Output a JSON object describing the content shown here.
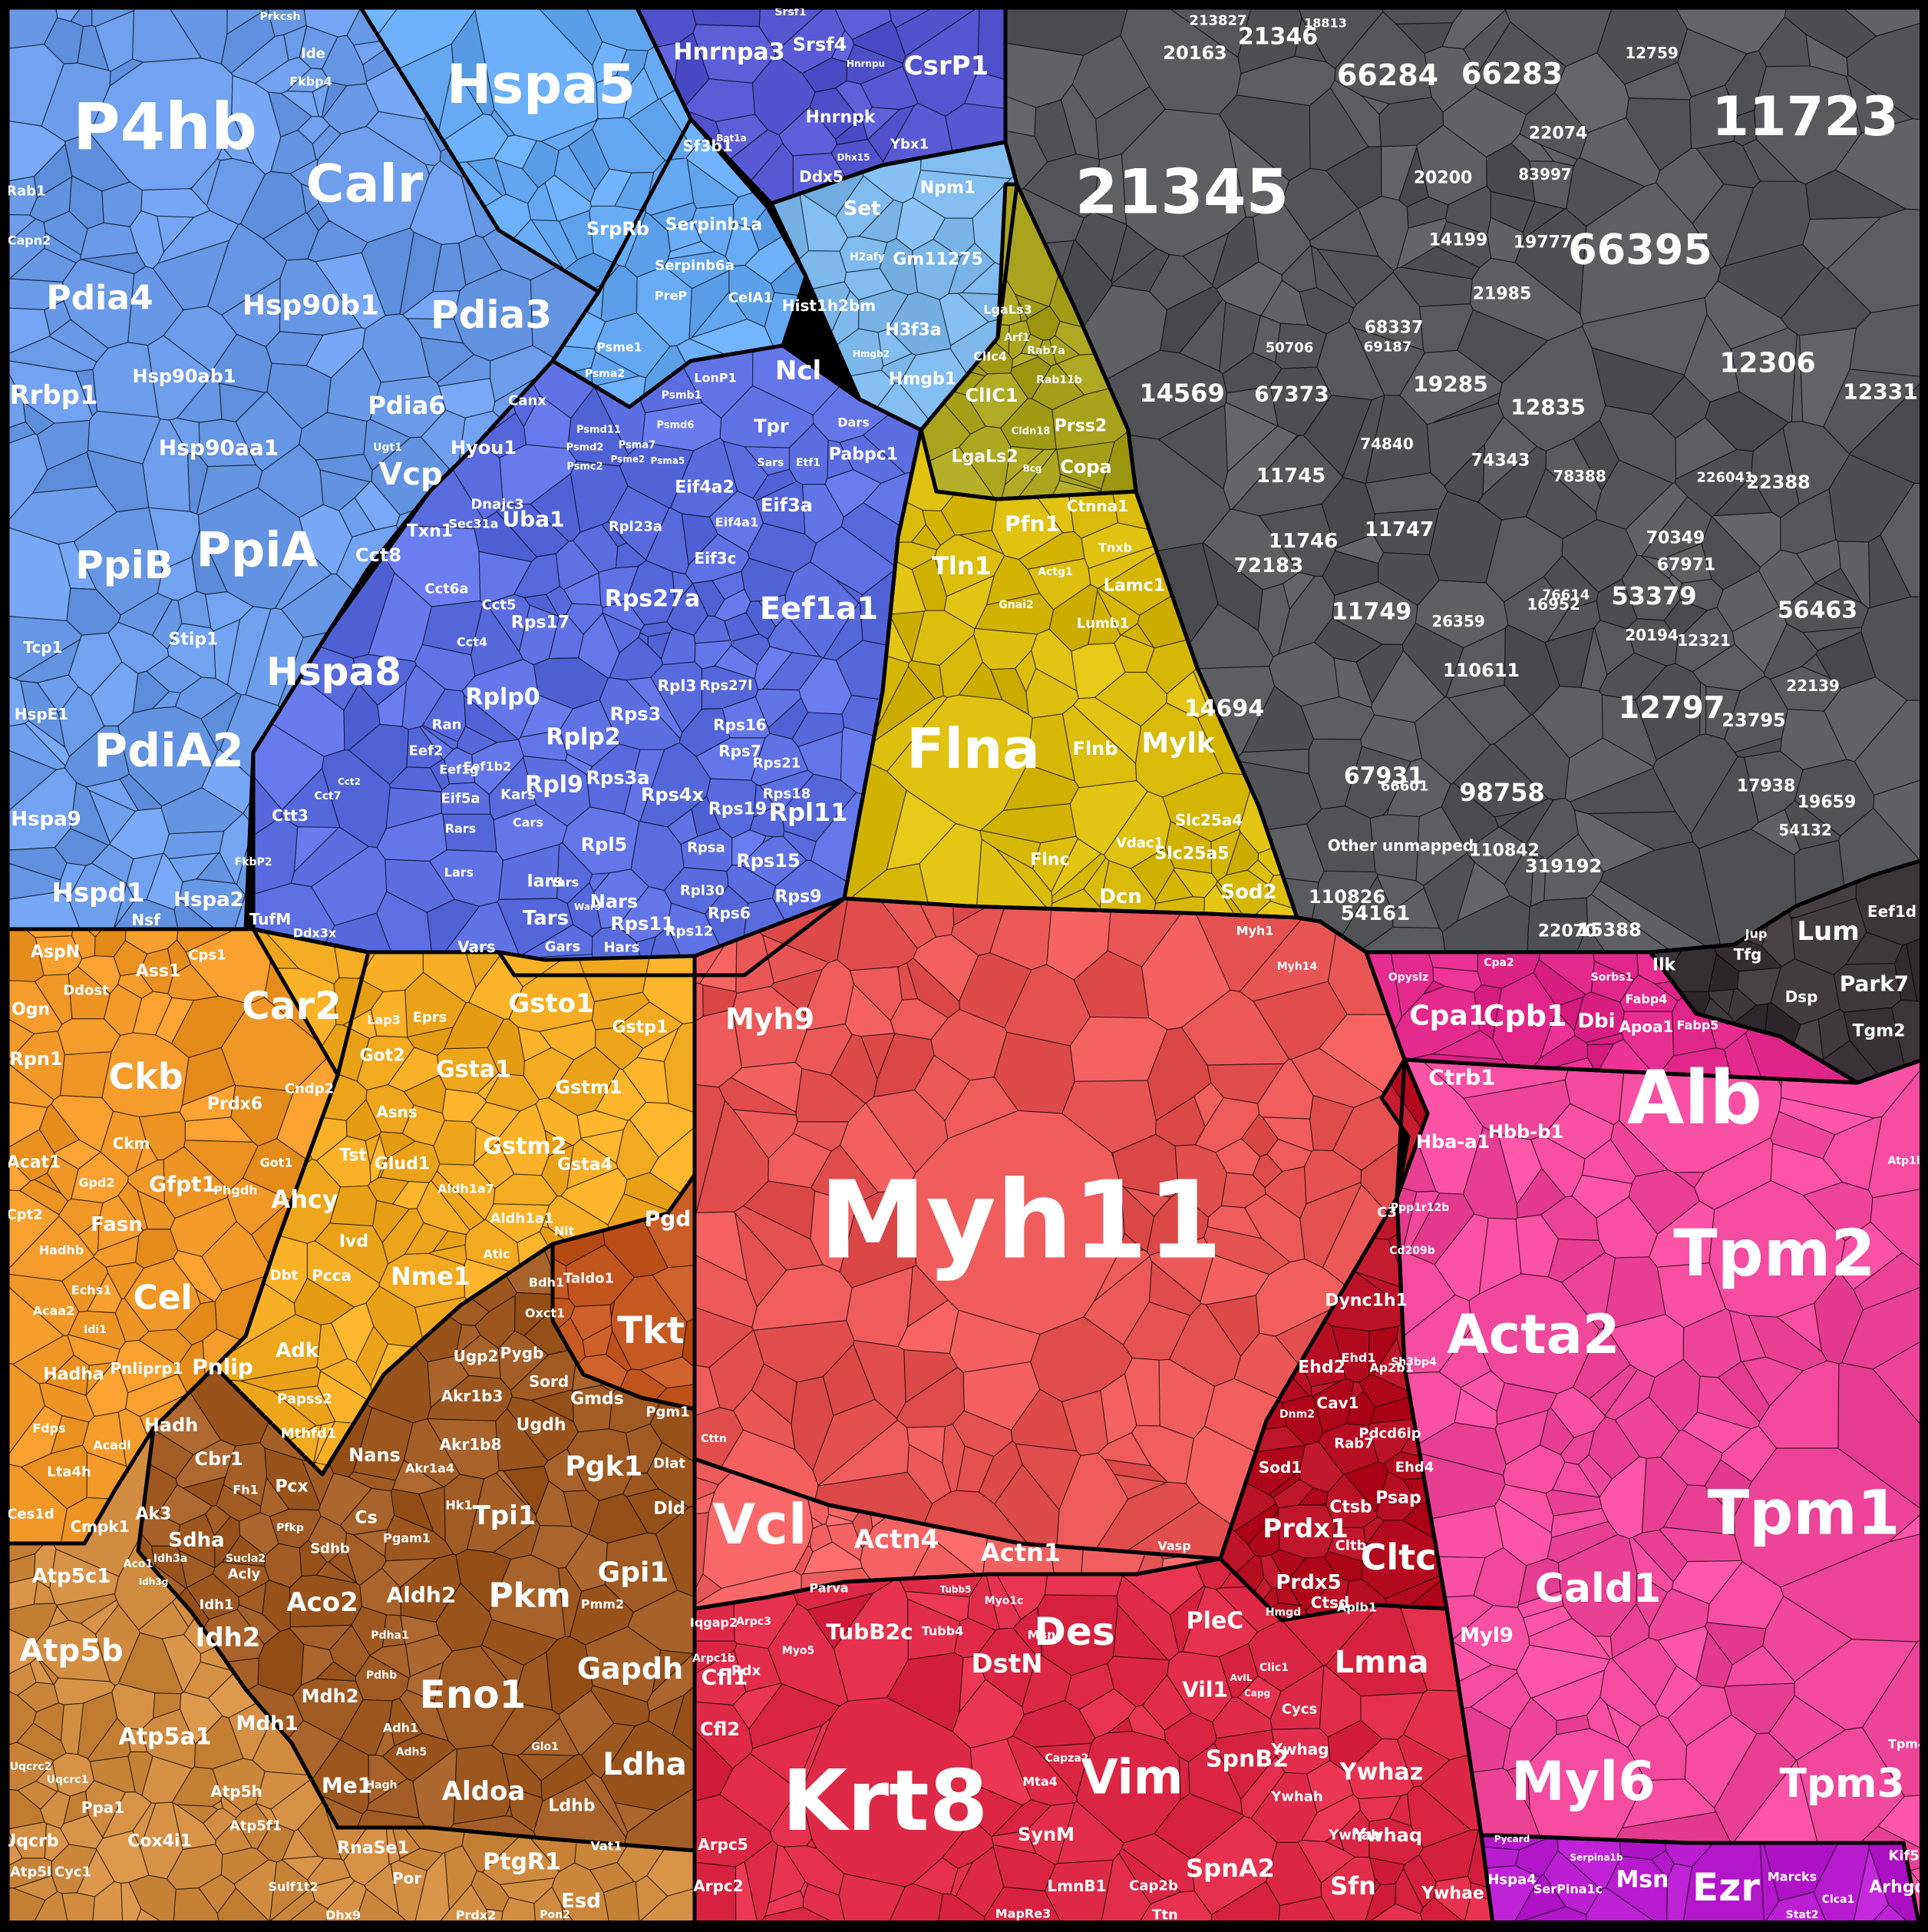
{
  "chart_data": {
    "type": "voronoi-treemap",
    "colors": {
      "er_blue": "#6a9ae8",
      "sky_blue": "#64a8f2",
      "indigo": "#5656d2",
      "light_blue": "#7cb6ea",
      "ribosome_blue": "#5b6fe3",
      "olive": "#a9a21d",
      "gold": "#d8ba0b",
      "unmapped_gray": "#55575b",
      "dark_slate": "#3b3438",
      "orange": "#f09828",
      "amber": "#f2aa20",
      "rust": "#c2541e",
      "brown": "#a05a22",
      "tan": "#d08a40",
      "coral": "#e85555",
      "salmon": "#f06060",
      "crimson": "#de2a46",
      "dark_red": "#b80e22",
      "magenta": "#e0268a",
      "hot_pink": "#f0489a",
      "purple": "#b81ad0"
    },
    "regions": [
      {
        "name": "er-chaperone",
        "color": "er_blue",
        "labels": [
          "P4hb",
          "Calr",
          "Pdia4",
          "Hsp90b1",
          "Pdia3",
          "Rrbp1",
          "Hsp90ab1",
          "Pdia6",
          "Hsp90aa1",
          "Vcp",
          "Hyou1",
          "Canx",
          "Uba1",
          "PpiB",
          "PpiA",
          "Cct8",
          "Txn1",
          "Cct6a",
          "Hspa8",
          "PdiA2",
          "Stip1",
          "Cct5",
          "Cct4",
          "Tcp1",
          "HspE1",
          "Hspa9",
          "Hspd1",
          "Rab1",
          "Capn2",
          "Ugt1",
          "Sec31a",
          "Fkbp4",
          "Ide",
          "Prkcsh",
          "Dnajc3",
          "Cct7",
          "Ctt3",
          "Cct2",
          "Hspa2",
          "Nsf",
          "TufM",
          "Ddx3x",
          "FkbP2"
        ]
      },
      {
        "name": "secretory",
        "color": "sky_blue",
        "labels": [
          "Hspa5",
          "SrpRb",
          "Serpinb1a",
          "Serpinb6a",
          "CelA1",
          "LonP1",
          "PreP",
          "Psme1",
          "Psma2",
          "Psmb1",
          "Psmd11",
          "Psmc2",
          "Psma7",
          "Psmd6",
          "Psmd2",
          "Psme2",
          "Psma5"
        ]
      },
      {
        "name": "splicing",
        "color": "indigo",
        "labels": [
          "Hnrnpa3",
          "Srsf4",
          "CsrP1",
          "Sf3b1",
          "Hnrnpk",
          "Ddx5",
          "Ybx1",
          "Srsf1",
          "Dhx15",
          "Hnrnpu",
          "Bat1a"
        ]
      },
      {
        "name": "histone",
        "color": "light_blue",
        "labels": [
          "Npm1",
          "Set",
          "Gm11275",
          "Hist1h2bm",
          "H3f3a",
          "Hmgb1",
          "H2afy",
          "Hmgb2"
        ]
      },
      {
        "name": "translation",
        "color": "ribosome_blue",
        "labels": [
          "Ncl",
          "Tpr",
          "Pabpc1",
          "Eif4a2",
          "Eif3a",
          "Eif4a1",
          "Eif3c",
          "Eef1a1",
          "Rpl23a",
          "Rps27a",
          "Rplp0",
          "Rplp2",
          "Rps3",
          "Rpl3",
          "Rps27l",
          "Rps16",
          "Rps17",
          "Rpl9",
          "Rps3a",
          "Rps4x",
          "Rps7",
          "Rps21",
          "Rps18",
          "Rps19",
          "Rpl11",
          "Rpl5",
          "Rps15",
          "Rpsa",
          "Rpl30",
          "Rps6",
          "Rps11",
          "Rps12",
          "Rps9",
          "Ran",
          "Eef2",
          "Eef1b2",
          "Eef1g",
          "Eif5a",
          "Kars",
          "Rars",
          "Cars",
          "Lars",
          "Iars",
          "Yars",
          "Tars",
          "Nars",
          "Vars",
          "Gars",
          "Hars",
          "Wars",
          "Dars",
          "Sars",
          "Etf1",
          "Ppp2r1a",
          "Farsb",
          "Eif3h",
          "Eif3b",
          "Eif3e"
        ]
      },
      {
        "name": "actin-binding",
        "color": "olive",
        "labels": [
          "ClIC1",
          "LgaLs2",
          "Prss2",
          "Copa",
          "ClIc4",
          "LgaLs3",
          "Arf1",
          "Rab7a",
          "Rab11b",
          "Cldn18",
          "Bcg"
        ]
      },
      {
        "name": "cytoskeleton-filamin",
        "color": "gold",
        "labels": [
          "Pfn1",
          "Tln1",
          "Ctnna1",
          "Lamc1",
          "Lumb1",
          "Flna",
          "Flnb",
          "Mylk",
          "Slc25a4",
          "Slc25a5",
          "Vdac1",
          "Flnc",
          "Dcn",
          "Sod2",
          "Gnai2",
          "Tnxb",
          "Actg1"
        ]
      },
      {
        "name": "other-unmapped",
        "color": "unmapped_gray",
        "labels": [
          "21345",
          "11723",
          "66284",
          "66283",
          "21346",
          "66395",
          "12306",
          "12331",
          "14569",
          "67373",
          "19285",
          "12835",
          "11745",
          "11746",
          "11747",
          "72183",
          "11749",
          "53379",
          "56463",
          "12797",
          "14694",
          "110611",
          "23795",
          "67931",
          "98758",
          "319192",
          "110842",
          "110826",
          "54161",
          "22070",
          "15388",
          "20163",
          "213827",
          "18813",
          "12759",
          "20200",
          "83997",
          "22074",
          "14199",
          "19777",
          "21985",
          "68337",
          "69187",
          "50706",
          "74840",
          "74343",
          "78388",
          "70349",
          "22388",
          "226041",
          "67971",
          "12321",
          "16952",
          "20194",
          "76614",
          "26359",
          "22139",
          "17938",
          "19659",
          "54132",
          "66601",
          "Other unmapped"
        ]
      },
      {
        "name": "ecm",
        "color": "dark_slate",
        "labels": [
          "Lum",
          "Park7",
          "Eef1d",
          "Tgm2",
          "Tfg",
          "Dsp",
          "Jup"
        ]
      },
      {
        "name": "metabolism-kinase",
        "color": "orange",
        "labels": [
          "AspN",
          "Ogn",
          "Rpn1",
          "Ddost",
          "Ass1",
          "Cps1",
          "Ckb",
          "Ckm",
          "Gfpt1",
          "Acat1",
          "Cpt2",
          "Fasn",
          "Cel",
          "Echs1",
          "Hadha",
          "Pnliprp1",
          "Pnlip",
          "Hadh",
          "Cbr1",
          "Lta4h",
          "Fdps",
          "Acadl",
          "Ces1d",
          "Cmpk1",
          "Ak3",
          "Gpd2",
          "Hadhb",
          "Acaa2",
          "Idi1"
        ]
      },
      {
        "name": "glutathione",
        "color": "amber",
        "labels": [
          "Car2",
          "Gsto1",
          "Gstp1",
          "Gsta1",
          "Gstm1",
          "Gstm2",
          "Gsta4",
          "Got2",
          "Asns",
          "Glud1",
          "Tst",
          "Prdx6",
          "Cndp2",
          "Ahcy",
          "Ivd",
          "Dbt",
          "Pcca",
          "Nme1",
          "Adk",
          "Papss2",
          "Aldh1a1",
          "Aldh1a7",
          "Got1",
          "Phgdh",
          "Eprs",
          "Lap3",
          "Nit",
          "Atic"
        ]
      },
      {
        "name": "pentose-phosphate",
        "color": "rust",
        "labels": [
          "Pgd",
          "Tkt",
          "Taldo1",
          "Pgm1",
          "Dlat",
          "Dld",
          "Bdh1",
          "Oxct1"
        ]
      },
      {
        "name": "glycolysis",
        "color": "brown",
        "labels": [
          "Ugp2",
          "Pygb",
          "Sord",
          "Akr1b3",
          "Ugdh",
          "Akr1b8",
          "Gmds",
          "Pgk1",
          "Nans",
          "Pcx",
          "Cs",
          "Tpi1",
          "Gpi1",
          "Sdha",
          "Aco2",
          "Idh2",
          "Mdh1",
          "Mdh2",
          "Me1",
          "Aldh2",
          "Pkm",
          "Gapdh",
          "Eno1",
          "Aldoa",
          "Ldha",
          "Ldhb",
          "Pdha1",
          "Pdhb",
          "Adh1",
          "Adh5",
          "Hagh",
          "Mthfd1",
          "Acly",
          "Idh1",
          "Sucla2",
          "Sdhb",
          "Fh1",
          "Hk1",
          "Pgam1",
          "Pmm2",
          "Glo1",
          "Akr1a4",
          "Pfkp",
          "Aco1",
          "Idh3a",
          "Idh3g"
        ]
      },
      {
        "name": "mitochondrial-atp",
        "color": "tan",
        "labels": [
          "Atp5c1",
          "Atp5b",
          "Atp5a1",
          "Atp5h",
          "Atp5f1",
          "Cox4i1",
          "Uqcrb",
          "Ppa1",
          "Cyc1",
          "Atp5l",
          "RnaSe1",
          "Por",
          "PtgR1",
          "Esd",
          "Sulf1t2",
          "Dhx9",
          "Prdx2",
          "Pon2",
          "Vat1",
          "Uqcrc2",
          "Uqcrc1"
        ]
      },
      {
        "name": "myosin-core",
        "color": "coral",
        "labels": [
          "Myh11",
          "Myh9",
          "Myh14",
          "Myh1",
          "Cttn"
        ]
      },
      {
        "name": "focal-adhesion",
        "color": "salmon",
        "labels": [
          "Vcl",
          "Actn4",
          "Actn1",
          "Parva",
          "Vasp"
        ]
      },
      {
        "name": "cytoskeleton-intermediate",
        "color": "crimson",
        "labels": [
          "TubB2c",
          "Tubb4",
          "Tubb5",
          "DstN",
          "Des",
          "PleC",
          "Vil1",
          "Krt8",
          "Vim",
          "SpnB2",
          "SpnA2",
          "SynM",
          "LmnB1",
          "Cap2b",
          "MapRe3",
          "Ttn",
          "Cfl1",
          "Cfl2",
          "Arpc5",
          "Arpc2",
          "Arpc3",
          "Rdx",
          "Iqgap2",
          "Arpc1b",
          "Msn",
          "Myo1c",
          "Myo5",
          "Mta4",
          "Capza2",
          "Lmna",
          "Ywhaz",
          "Ywhag",
          "Ywhah",
          "Ywhab",
          "Ywhaq",
          "Ywhae",
          "Sfn",
          "Cycs",
          "Clic1",
          "AvIL",
          "Capg"
        ]
      },
      {
        "name": "trafficking",
        "color": "dark_red",
        "labels": [
          "C3",
          "Dync1h1",
          "Ehd2",
          "Ehd1",
          "Cav1",
          "Ap2b1",
          "Pdcd6ip",
          "Rab7",
          "Ehd4",
          "Sod1",
          "Prdx1",
          "Ctsb",
          "Psap",
          "Cltc",
          "Prdx5",
          "Cltb",
          "Ctsd",
          "Aplb1",
          "Hmgd",
          "Dnm2",
          "Sh3bp4",
          "Cd209b"
        ]
      },
      {
        "name": "plasma-pancreas",
        "color": "magenta",
        "labels": [
          "Ilk",
          "Cpa1",
          "Cpb1",
          "Ctrb1",
          "Dbi",
          "Apoa1",
          "Fabp4",
          "Fabp5",
          "Cpa2",
          "Hba-a1",
          "Hbb-b1",
          "Opyslz",
          "Sorbs1"
        ]
      },
      {
        "name": "smooth-muscle",
        "color": "hot_pink",
        "labels": [
          "Alb",
          "Tpm2",
          "Acta2",
          "Tpm1",
          "Cald1",
          "Myl9",
          "Myl6",
          "Tpm3",
          "Tpm4",
          "Kif5b",
          "Arhgdia",
          "Atp1b1",
          "Ppp1r12b"
        ]
      },
      {
        "name": "membrane-skeleton",
        "color": "purple",
        "labels": [
          "Hspa4",
          "SerPina1c",
          "Msn",
          "Ezr",
          "Marcks",
          "Serpina1b",
          "Stat2",
          "Clca1",
          "Pycard"
        ]
      }
    ]
  }
}
